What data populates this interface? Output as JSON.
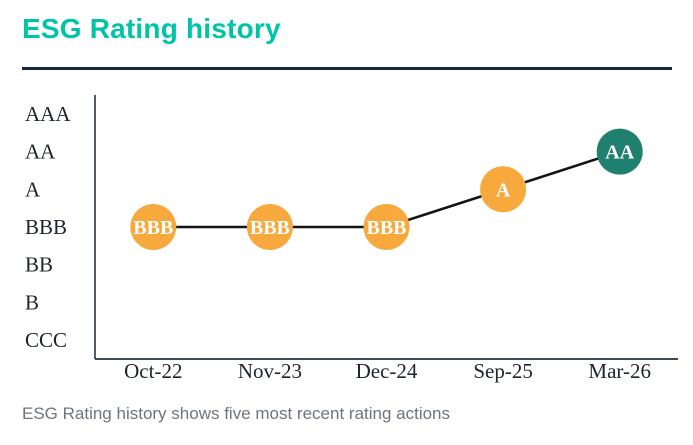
{
  "page": {
    "title": "ESG Rating history",
    "caption": "ESG Rating history shows five most recent rating actions"
  },
  "colors": {
    "title_teal": "#00C4A8",
    "rule_navy": "#152A3E",
    "axis_line": "#3B4B5A",
    "data_line": "#141414",
    "marker_orange": "#F7A93E",
    "marker_teal": "#20806F",
    "marker_text": "#FFFFFF",
    "axis_label": "#1E242B",
    "caption_grey": "#6E757C"
  },
  "chart_data": {
    "type": "line",
    "title": "ESG Rating history",
    "x": [
      "Oct-22",
      "Nov-23",
      "Dec-24",
      "Sep-25",
      "Mar-26"
    ],
    "y_categories": [
      "AAA",
      "AA",
      "A",
      "BBB",
      "BB",
      "B",
      "CCC"
    ],
    "series": [
      {
        "name": "ESG Rating",
        "values": [
          "BBB",
          "BBB",
          "BBB",
          "A",
          "AA"
        ],
        "marker_colors": [
          "#F7A93E",
          "#F7A93E",
          "#F7A93E",
          "#F7A93E",
          "#20806F"
        ]
      }
    ],
    "xlabel": "",
    "ylabel": "",
    "grid": false,
    "legend": false
  }
}
